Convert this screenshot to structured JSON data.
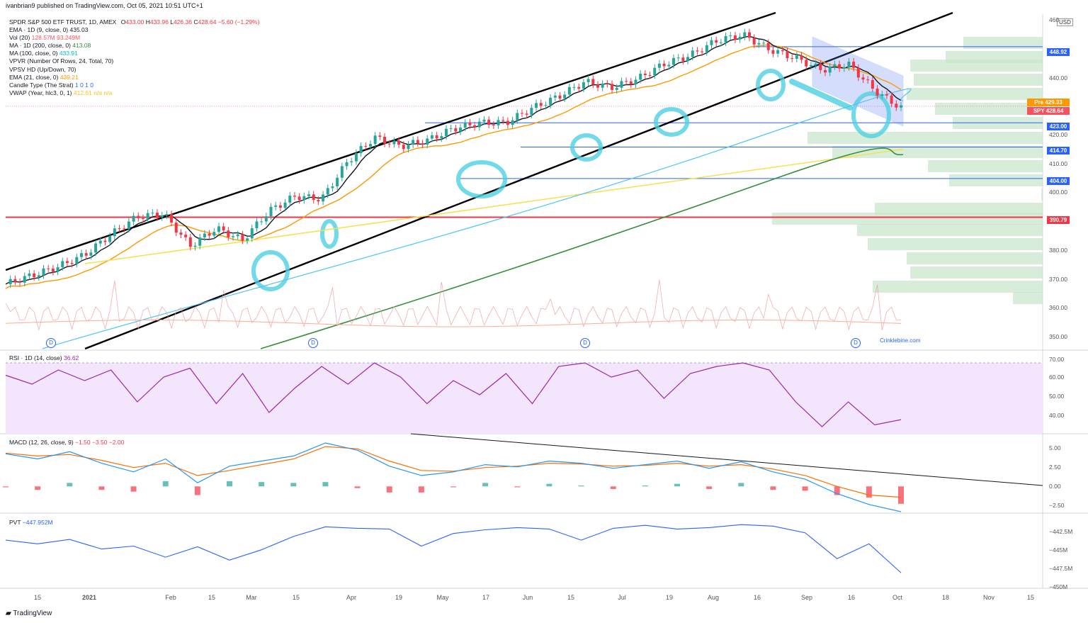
{
  "header": {
    "published_by": "ivanbrian9 published on TradingView.com, Oct 05, 2021 10:51 UTC+1",
    "currency": "USD",
    "watermark": "Crinklebine.com",
    "tv_logo": "TradingView"
  },
  "legend": {
    "symbol": "SPDR S&P 500 ETF TRUST, 1D, AMEX",
    "ohlc": {
      "O": "433.00",
      "H": "433.96",
      "L": "426.36",
      "C": "428.64",
      "chg": "−5.60 (−1.29%)"
    },
    "lines": [
      {
        "label": "EMA · 1D (9, close, 0)",
        "value": "435.03",
        "color": "#131722"
      },
      {
        "label": "Vol (20)",
        "value": "128.57M  93.249M",
        "color": "#f7525f"
      },
      {
        "label": "MA · 1D (200, close, 0)",
        "value": "413.08",
        "color": "#388e3c"
      },
      {
        "label": "MA (100, close, 0)",
        "value": "433.91",
        "color": "#00bcd4"
      },
      {
        "label": "VPVR (Number Of Rows, 24, Total, 70)",
        "value": "",
        "color": "#131722"
      },
      {
        "label": "VPSV HD (Up/Down, 70)",
        "value": "",
        "color": "#131722"
      },
      {
        "label": "EMA (21, close, 0)",
        "value": "439.21",
        "color": "#ff9800"
      },
      {
        "label": "Candle Type (The Strat)",
        "value": "1 0 1 0",
        "color": "#2962ff"
      },
      {
        "label": "VWAP (Year, hlc3, 0, 1)",
        "value": "412.61  n/a  n/a",
        "color": "#f5c518"
      }
    ]
  },
  "price_axis": {
    "ticks": [
      "460",
      "440.00",
      "420.00",
      "410.00",
      "400.00",
      "380.00",
      "370.00",
      "360.00",
      "350.00"
    ],
    "badges": [
      {
        "label": "448.92",
        "color": "#2962ff"
      },
      {
        "label": "Pre 429.33",
        "color": "#ff9800"
      },
      {
        "label": "SPY 428.64",
        "color": "#f7525f"
      },
      {
        "label": "423.00",
        "color": "#2962ff"
      },
      {
        "label": "414.70",
        "color": "#2962ff"
      },
      {
        "label": "404.00",
        "color": "#2962ff"
      },
      {
        "label": "390.79",
        "color": "#f23645"
      }
    ]
  },
  "x_axis": {
    "labels": [
      "15",
      "2021",
      "Feb",
      "15",
      "Mar",
      "15",
      "Apr",
      "19",
      "May",
      "17",
      "Jun",
      "15",
      "Jul",
      "19",
      "Aug",
      "16",
      "Sep",
      "16",
      "Oct",
      "18",
      "Nov",
      "15"
    ]
  },
  "panes": {
    "rsi": {
      "title": "RSI · 1D (14, close)",
      "value": "36.62",
      "ticks": [
        "70.00",
        "60.00",
        "50.00",
        "40.00"
      ]
    },
    "macd": {
      "title": "MACD (12, 26, close, 9)",
      "values": "−1.50  −3.50  −2.00",
      "ticks": [
        "5.00",
        "2.50",
        "0.00",
        "−2.50"
      ]
    },
    "pvt": {
      "title": "PVT",
      "value": "−447.952M",
      "ticks": [
        "−442.5M",
        "−445M",
        "−447.5M",
        "−450M"
      ]
    }
  },
  "chart_data": [
    {
      "type": "candlestick",
      "title": "SPDR S&P 500 ETF TRUST, 1D, AMEX",
      "ylim": [
        346,
        460
      ],
      "x": [
        "Dec 2020",
        "Jan 2021",
        "Feb",
        "Mar",
        "Apr",
        "May",
        "Jun",
        "Jul",
        "Aug",
        "Sep",
        "Oct"
      ],
      "close_path": [
        368,
        371,
        374,
        378,
        385,
        391,
        392,
        381,
        387,
        383,
        393,
        398,
        397,
        410,
        418,
        415,
        417,
        421,
        423,
        423,
        428,
        432,
        437,
        435,
        438,
        443,
        446,
        451,
        453,
        448,
        445,
        441,
        443,
        434,
        428
      ],
      "horizontal_levels": [
        448.92,
        423.0,
        414.7,
        404.0,
        390.79
      ],
      "series": [
        {
          "name": "EMA 9",
          "last": 435.03
        },
        {
          "name": "EMA 21",
          "last": 439.21
        },
        {
          "name": "MA 100",
          "last": 433.91
        },
        {
          "name": "MA 200",
          "last": 413.08
        },
        {
          "name": "VWAP",
          "last": 412.61
        }
      ]
    },
    {
      "type": "line",
      "title": "RSI · 1D (14, close)",
      "ylim": [
        30,
        72
      ],
      "values": [
        63,
        58,
        66,
        60,
        66,
        48,
        62,
        67,
        47,
        64,
        42,
        56,
        68,
        58,
        70,
        62,
        47,
        60,
        52,
        64,
        47,
        68,
        70,
        62,
        66,
        50,
        64,
        68,
        70,
        66,
        48,
        34,
        48,
        35,
        38
      ]
    },
    {
      "type": "bar",
      "title": "MACD (12, 26, close, 9)",
      "ylim": [
        -3.5,
        6
      ],
      "series": [
        {
          "name": "MACD",
          "values": [
            4.5,
            3.8,
            4.8,
            3.2,
            2.0,
            3.8,
            0.5,
            2.8,
            3.5,
            4.2,
            6.0,
            5.0,
            2.8,
            1.5,
            2.0,
            3.0,
            2.7,
            3.5,
            3.2,
            2.5,
            3.0,
            3.5,
            2.5,
            3.4,
            2.0,
            1.0,
            -1.0,
            -2.5,
            -3.5
          ]
        },
        {
          "name": "Signal",
          "values": [
            4.6,
            4.2,
            4.4,
            3.6,
            2.6,
            3.2,
            1.5,
            2.2,
            3.0,
            3.8,
            5.5,
            5.2,
            3.5,
            2.2,
            2.1,
            2.6,
            2.8,
            3.2,
            3.1,
            2.8,
            2.9,
            3.2,
            2.8,
            3.0,
            2.4,
            1.5,
            0.0,
            -1.2,
            -1.5
          ]
        }
      ]
    },
    {
      "type": "line",
      "title": "PVT",
      "ylim": [
        -450,
        -441
      ],
      "values": [
        -443.5,
        -444.0,
        -443.4,
        -444.7,
        -444.3,
        -445.8,
        -444.4,
        -446.2,
        -444.8,
        -443.0,
        -441.7,
        -441.9,
        -442.0,
        -444.3,
        -442.6,
        -442.1,
        -441.8,
        -442.0,
        -443.5,
        -441.9,
        -441.5,
        -442.0,
        -441.8,
        -441.4,
        -441.6,
        -442.5,
        -446.0,
        -444.0,
        -447.9
      ]
    }
  ],
  "colors": {
    "bull": "#26a69a",
    "bear": "#f23645",
    "ema9": "#131722",
    "ema21": "#ff9800",
    "ma100": "#4fc3f7",
    "ma200": "#388e3c",
    "vwap": "#f5e04f",
    "rsi": "#9c27b0",
    "rsi_bg": "#f3e5fb",
    "macd": "#2196f3",
    "signal": "#ff6d00",
    "pvt": "#2962ff",
    "channel": "#000000",
    "highlight": "#4dd0e1",
    "vp": "#c8e6c9"
  }
}
